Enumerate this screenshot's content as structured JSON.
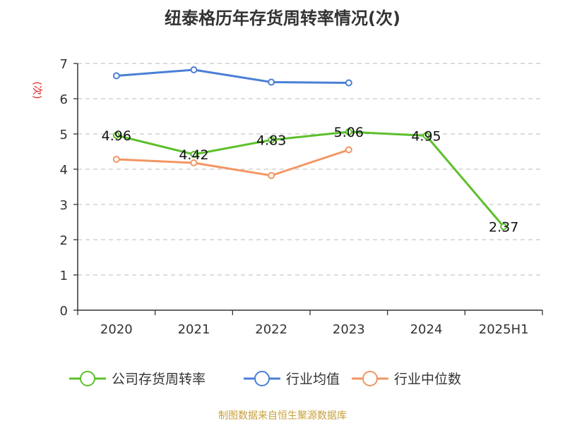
{
  "chart_data": {
    "type": "line",
    "title": "纽泰格历年存货周转率情况(次)",
    "ylabel": "(次)",
    "xlabel": "",
    "categories": [
      "2020",
      "2021",
      "2022",
      "2023",
      "2024",
      "2025H1"
    ],
    "ylim": [
      0,
      7
    ],
    "yticks": [
      0,
      1,
      2,
      3,
      4,
      5,
      6,
      7
    ],
    "grid": true,
    "legend_position": "bottom",
    "series": [
      {
        "name": "公司存货周转率",
        "color": "#5cc02c",
        "values": [
          4.96,
          4.42,
          4.83,
          5.06,
          4.95,
          2.37
        ],
        "show_labels": true
      },
      {
        "name": "行业均值",
        "color": "#4a7fd6",
        "values": [
          6.65,
          6.82,
          6.47,
          6.45,
          null,
          null
        ],
        "show_labels": false
      },
      {
        "name": "行业中位数",
        "color": "#f39563",
        "values": [
          4.28,
          4.18,
          3.82,
          4.55,
          null,
          null
        ],
        "show_labels": false
      }
    ]
  },
  "source": "制图数据来自恒生聚源数据库"
}
